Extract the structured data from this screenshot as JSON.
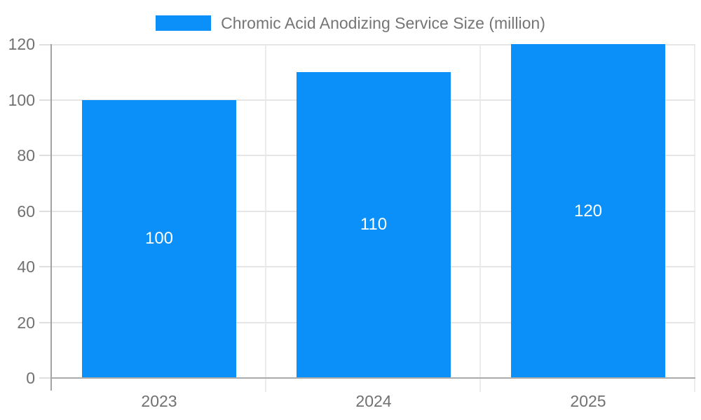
{
  "colors": {
    "bar_blue": "#0a90f8",
    "legend_text": "#757575",
    "axis_text": "#717171",
    "grid_horizontal": "#e6e6e6",
    "grid_vertical": "#ececec",
    "axis_line": "#a8a8a8",
    "value_label": "#ffffff",
    "background": "#ffffff"
  },
  "legend": {
    "label": "Chromic Acid Anodizing Service Size (million)",
    "position": "top"
  },
  "chart_data": {
    "type": "bar",
    "title": "Chromic Acid Anodizing Service Size (million)",
    "categories": [
      "2023",
      "2024",
      "2025"
    ],
    "values": [
      100,
      110,
      120
    ],
    "series": [
      {
        "name": "Chromic Acid Anodizing Service Size (million)",
        "values": [
          100,
          110,
          120
        ],
        "color": "#0a90f8"
      }
    ],
    "value_labels_shown": [
      100,
      110,
      120
    ],
    "xlabel": "",
    "ylabel": "",
    "ylim": [
      0,
      120
    ],
    "yticks": [
      0,
      20,
      40,
      60,
      80,
      100,
      120
    ],
    "grid": true,
    "legend_position": "top"
  }
}
